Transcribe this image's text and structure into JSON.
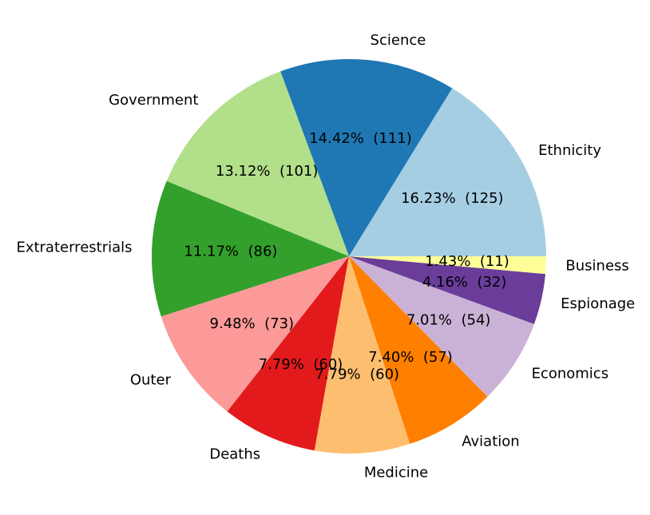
{
  "chart_data": {
    "type": "pie",
    "title": "",
    "start_angle_deg": 0,
    "direction": "counterclockwise",
    "slices": [
      {
        "label": "Ethnicity",
        "value": 125,
        "percent_label": "16.23%  (125)",
        "color": "#a6cee3"
      },
      {
        "label": "Science",
        "value": 111,
        "percent_label": "14.42%  (111)",
        "color": "#1f78b4"
      },
      {
        "label": "Government",
        "value": 101,
        "percent_label": "13.12%  (101)",
        "color": "#b2df8a"
      },
      {
        "label": "Extraterrestrials",
        "value": 86,
        "percent_label": "11.17%  (86)",
        "color": "#33a02c"
      },
      {
        "label": "Outer",
        "value": 73,
        "percent_label": "9.48%  (73)",
        "color": "#fb9a99"
      },
      {
        "label": "Deaths",
        "value": 60,
        "percent_label": "7.79%  (60)",
        "color": "#e31a1c"
      },
      {
        "label": "Medicine",
        "value": 60,
        "percent_label": "7.79%  (60)",
        "color": "#fdbf6f"
      },
      {
        "label": "Aviation",
        "value": 57,
        "percent_label": "7.40%  (57)",
        "color": "#ff7f00"
      },
      {
        "label": "Economics",
        "value": 54,
        "percent_label": "7.01%  (54)",
        "color": "#cab2d6"
      },
      {
        "label": "Espionage",
        "value": 32,
        "percent_label": "4.16%  (32)",
        "color": "#6a3d9a"
      },
      {
        "label": "Business",
        "value": 11,
        "percent_label": "1.43%  (11)",
        "color": "#ffff99"
      }
    ]
  }
}
